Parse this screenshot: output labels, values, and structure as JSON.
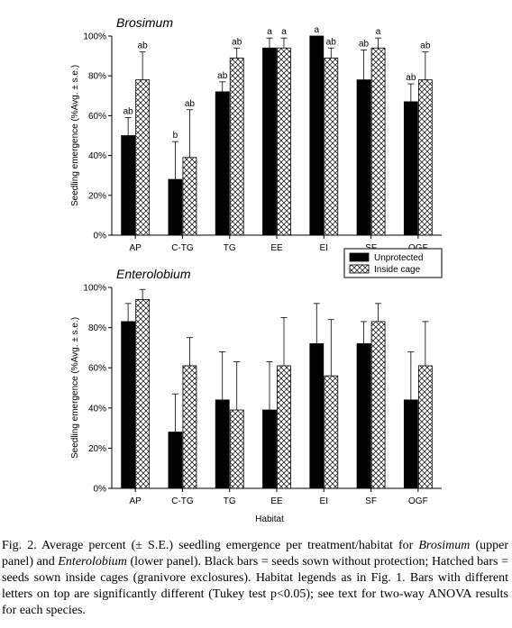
{
  "chart_data": [
    {
      "type": "bar",
      "panel": "upper",
      "title": "Brosimum",
      "ylabel": "Seedling emergence (%Avg. ± s.e.)",
      "xlabel": "",
      "ylim": [
        0,
        100
      ],
      "yticks": [
        "0%",
        "20%",
        "40%",
        "60%",
        "80%",
        "100%"
      ],
      "categories": [
        "AP",
        "C-TG",
        "TG",
        "EE",
        "EI",
        "SF",
        "OGF"
      ],
      "series": [
        {
          "name": "Unprotected",
          "fill": "#000000",
          "values": [
            50,
            28,
            72,
            94,
            100,
            78,
            67
          ],
          "errors": [
            9,
            19,
            5,
            5,
            0,
            15,
            9
          ]
        },
        {
          "name": "Inside cage",
          "fill": "hatch",
          "values": [
            78,
            39,
            89,
            94,
            89,
            94,
            78
          ],
          "errors": [
            14,
            24,
            5,
            5,
            5,
            5,
            14
          ]
        }
      ],
      "annotations": [
        [
          "ab",
          "ab"
        ],
        [
          "b",
          "ab"
        ],
        [
          "ab",
          "ab"
        ],
        [
          "a",
          "a"
        ],
        [
          "a",
          "ab"
        ],
        [
          "ab",
          "a"
        ],
        [
          "ab",
          "ab"
        ]
      ],
      "legend": {
        "position": "bottom-right",
        "entries": [
          "Unprotected",
          "Inside cage"
        ]
      }
    },
    {
      "type": "bar",
      "panel": "lower",
      "title": "Enterolobium",
      "ylabel": "Seedling emergence (%Avg. ± s.e.)",
      "xlabel": "Habitat",
      "ylim": [
        0,
        100
      ],
      "yticks": [
        "0%",
        "20%",
        "40%",
        "60%",
        "80%",
        "100%"
      ],
      "categories": [
        "AP",
        "C-TG",
        "TG",
        "EE",
        "EI",
        "SF",
        "OGF"
      ],
      "series": [
        {
          "name": "Unprotected",
          "fill": "#000000",
          "values": [
            83,
            28,
            44,
            39,
            72,
            72,
            44
          ],
          "errors": [
            9,
            19,
            24,
            24,
            20,
            11,
            24
          ]
        },
        {
          "name": "Inside cage",
          "fill": "hatch",
          "values": [
            94,
            61,
            39,
            61,
            56,
            83,
            61
          ],
          "errors": [
            5,
            14,
            24,
            24,
            28,
            9,
            22
          ]
        }
      ]
    }
  ],
  "caption": {
    "figure_label": "Fig. 2.",
    "text_1": " Average percent (± S.E.) seedling emergence per treatment/habitat for ",
    "species_1": "Brosimum",
    "text_2": " (upper panel) and ",
    "species_2": "Enterolobium",
    "text_3": " (lower panel). Black bars = seeds sown without protection; Hatched bars = seeds sown inside cages (granivore exclosures). Habitat legends as in Fig. 1. Bars with different letters on top are significantly different (Tukey test p<0.05); see text for two-way ANOVA results for each species."
  }
}
